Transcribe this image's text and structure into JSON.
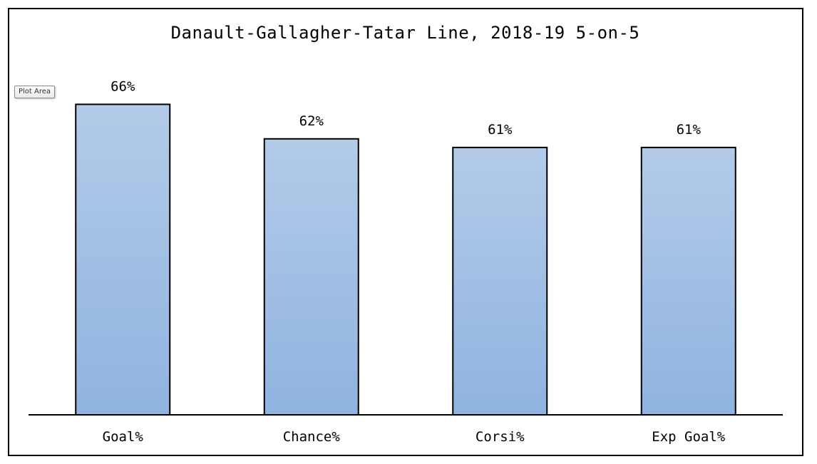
{
  "tooltip": {
    "label": "Plot Area"
  },
  "chart_data": {
    "type": "bar",
    "title": "Danault-Gallagher-Tatar Line, 2018-19 5-on-5",
    "xlabel": "",
    "ylabel": "",
    "categories": [
      "Goal%",
      "Chance%",
      "Corsi%",
      "Exp Goal%"
    ],
    "values": [
      66,
      62,
      61,
      61
    ],
    "data_labels": [
      "66%",
      "62%",
      "61%",
      "61%"
    ],
    "ylim": [
      30,
      70
    ],
    "grid": false,
    "legend": "none",
    "colors": {
      "bar_top": "#b3cbe8",
      "bar_bottom": "#8fb3e0",
      "bar_stroke": "#000000",
      "axis": "#000000"
    }
  }
}
